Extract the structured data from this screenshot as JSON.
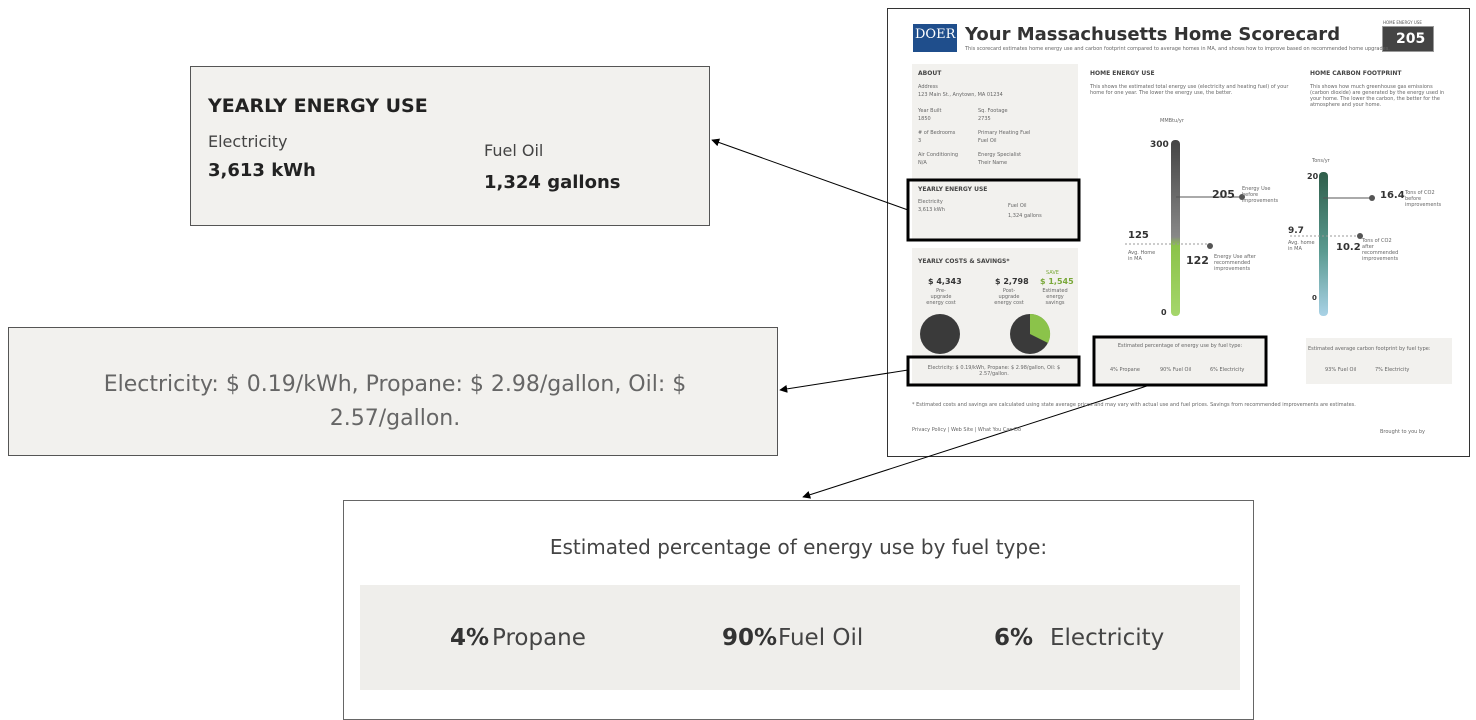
{
  "callouts": {
    "energy_use": {
      "title": "YEARLY ENERGY USE",
      "electricity_label": "Electricity",
      "electricity_value": "3,613 kWh",
      "fuel_label": "Fuel Oil",
      "fuel_value": "1,324 gallons"
    },
    "rates": {
      "text": "Electricity: $ 0.19/kWh, Propane: $ 2.98/gallon, Oil: $ 2.57/gallon."
    },
    "fuel_mix": {
      "title": "Estimated percentage of energy use by fuel type:",
      "items": [
        {
          "percent": "4%",
          "fuel": "Propane"
        },
        {
          "percent": "90%",
          "fuel": "Fuel Oil"
        },
        {
          "percent": "6%",
          "fuel": "Electricity"
        }
      ]
    }
  },
  "scorecard": {
    "logo": "DOER",
    "title": "Your Massachusetts Home Scorecard",
    "subtitle": "This scorecard estimates home energy use and carbon footprint compared to average homes in MA, and shows how to improve based on recommended home upgrades.",
    "score_label": "HOME ENERGY USE",
    "score": "205",
    "about": {
      "heading": "ABOUT",
      "address_label": "Address",
      "address": "123 Main St., Anytown, MA 01234",
      "fields": [
        {
          "label": "Year Built",
          "value": "1850"
        },
        {
          "label": "Sq. Footage",
          "value": "2735"
        },
        {
          "label": "# of Bedrooms",
          "value": "3"
        },
        {
          "label": "Primary Heating Fuel",
          "value": "Fuel Oil"
        },
        {
          "label": "Air Conditioning",
          "value": "N/A"
        },
        {
          "label": "Energy Specialist",
          "value": "Their Name"
        }
      ]
    },
    "yearly_use": {
      "heading": "YEARLY ENERGY USE",
      "electricity_label": "Electricity",
      "electricity_value": "3,613 kWh",
      "fuel_label": "Fuel Oil",
      "fuel_value": "1,324 gallons"
    },
    "costs": {
      "heading": "YEARLY COSTS & SAVINGS*",
      "pre": "$ 4,343",
      "pre_label": "Pre-upgrade energy cost",
      "post": "$ 2,798",
      "post_label": "Post-upgrade energy cost",
      "save_label": "SAVE",
      "save": "$ 1,545",
      "save_desc": "Estimated energy savings",
      "rates": "Electricity: $ 0.19/kWh, Propane: $ 2.98/gallon, Oil: $ 2.57/gallon."
    },
    "energy": {
      "heading": "HOME ENERGY USE",
      "desc": "This shows the estimated total energy use (electricity and heating fuel) of your home for one year. The lower the energy use, the better.",
      "unit": "MMBtu/yr",
      "top": "300",
      "before": "205",
      "before_label": "Energy Use before improvements",
      "avg": "125",
      "avg_label": "Avg. Home in MA",
      "after": "122",
      "after_label": "Energy Use after recommended improvements",
      "bottom": "0",
      "mix_title": "Estimated percentage of energy use by fuel type:",
      "mix": [
        "4% Propane",
        "90% Fuel Oil",
        "6% Electricity"
      ]
    },
    "carbon": {
      "heading": "HOME CARBON FOOTPRINT",
      "desc": "This shows how much greenhouse gas emissions (carbon dioxide) are generated by the energy used in your home. The lower the carbon, the better for the atmosphere and your home.",
      "unit": "Tons/yr",
      "top": "20",
      "before": "16.4",
      "before_label": "Tons of CO2 before improvements",
      "avg": "9.7",
      "avg_label": "Avg. home in MA",
      "after": "10.2",
      "after_label": "Tons of CO2 after recommended improvements",
      "bottom": "0",
      "mix_title": "Estimated average carbon footprint by fuel type:",
      "mix": [
        "93% Fuel Oil",
        "7% Electricity"
      ]
    },
    "footnote": "* Estimated costs and savings are calculated using state average prices and may vary with actual use and fuel prices. Savings from recommended improvements are estimates.",
    "footer_links": "Privacy Policy | Web Site | What You Can Do",
    "brought": "Brought to you by"
  }
}
